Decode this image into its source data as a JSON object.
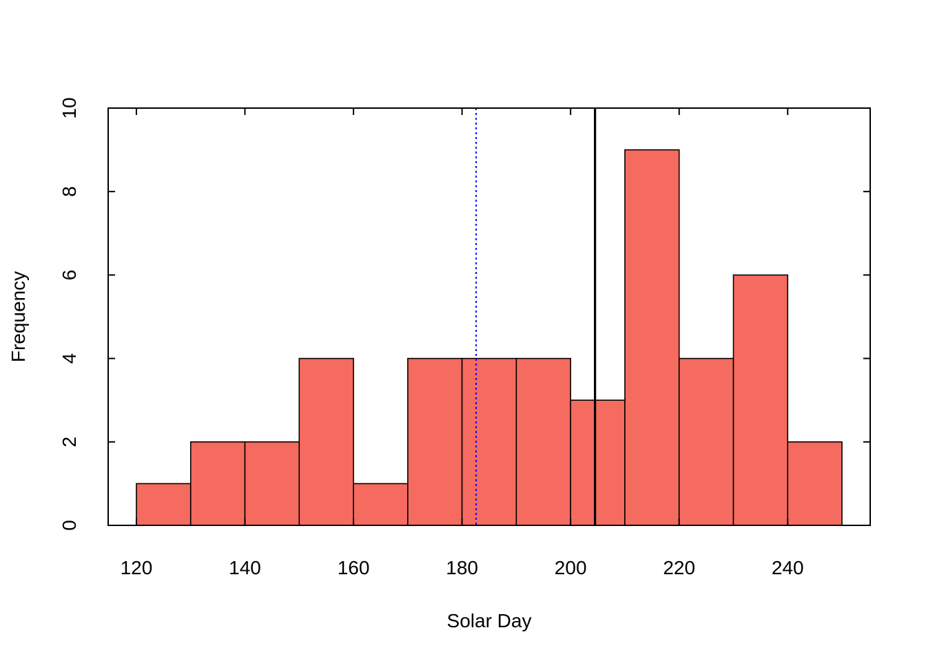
{
  "chart_data": {
    "type": "bar",
    "subtype": "histogram",
    "title": "",
    "xlabel": "Solar Day",
    "ylabel": "Frequency",
    "bins": [
      {
        "start": 120,
        "end": 130,
        "count": 1
      },
      {
        "start": 130,
        "end": 140,
        "count": 2
      },
      {
        "start": 140,
        "end": 150,
        "count": 2
      },
      {
        "start": 150,
        "end": 160,
        "count": 4
      },
      {
        "start": 160,
        "end": 170,
        "count": 1
      },
      {
        "start": 170,
        "end": 180,
        "count": 4
      },
      {
        "start": 180,
        "end": 190,
        "count": 4
      },
      {
        "start": 190,
        "end": 200,
        "count": 4
      },
      {
        "start": 200,
        "end": 210,
        "count": 3
      },
      {
        "start": 210,
        "end": 220,
        "count": 9
      },
      {
        "start": 220,
        "end": 230,
        "count": 4
      },
      {
        "start": 230,
        "end": 240,
        "count": 6
      },
      {
        "start": 240,
        "end": 250,
        "count": 2
      }
    ],
    "xlim": [
      114.8,
      255.2
    ],
    "ylim": [
      0,
      10
    ],
    "xticks": [
      "120",
      "140",
      "160",
      "180",
      "200",
      "220",
      "240"
    ],
    "yticks": [
      "0",
      "2",
      "4",
      "6",
      "8",
      "10"
    ],
    "reference_lines": [
      {
        "x": 182.6,
        "color": "#0000ff",
        "style": "dotted"
      },
      {
        "x": 204.5,
        "color": "#000000",
        "style": "solid"
      }
    ],
    "grid": false,
    "bar_color": "#f56b5f",
    "bar_edge_color": "#000000"
  }
}
